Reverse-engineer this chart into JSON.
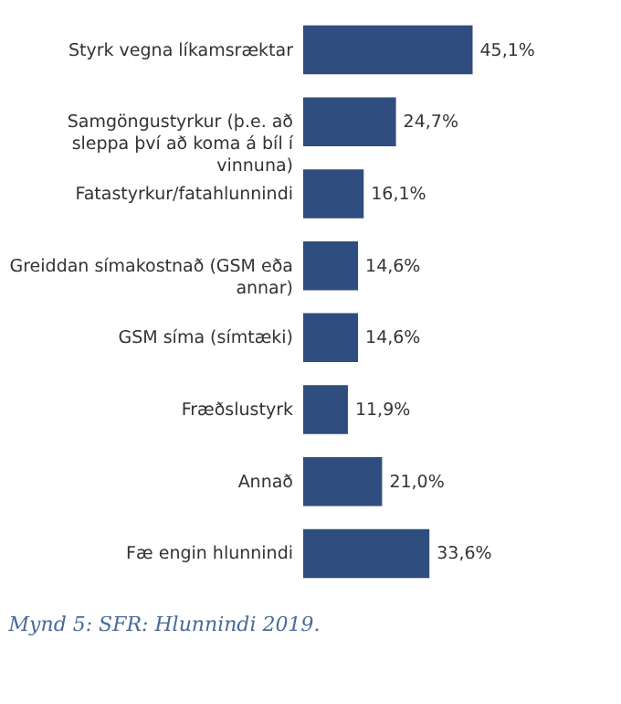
{
  "chart_data": {
    "type": "bar",
    "orientation": "horizontal",
    "annotations": [
      "Mynd 5: SFR: Hlunnindi 2019."
    ],
    "categories": [
      "Styrk vegna líkamsræktar",
      "Samgöngustyrkur (þ.e. að sleppa því að koma á bíl í vinnuna)",
      "Fatastyrkur/fatahlunnindi",
      "Greiddan símakostnað (GSM eða annar)",
      "GSM síma (símtæki)",
      "Fræðslustyrk",
      "Annað",
      "Fæ engin hlunnindi"
    ],
    "values": [
      45.1,
      24.7,
      16.1,
      14.6,
      14.6,
      11.9,
      21.0,
      33.6
    ],
    "value_labels": [
      "45,1%",
      "24,7%",
      "16,1%",
      "14,6%",
      "14,6%",
      "11,9%",
      "21,0%",
      "33,6%"
    ],
    "color": "#2f4d7e"
  }
}
